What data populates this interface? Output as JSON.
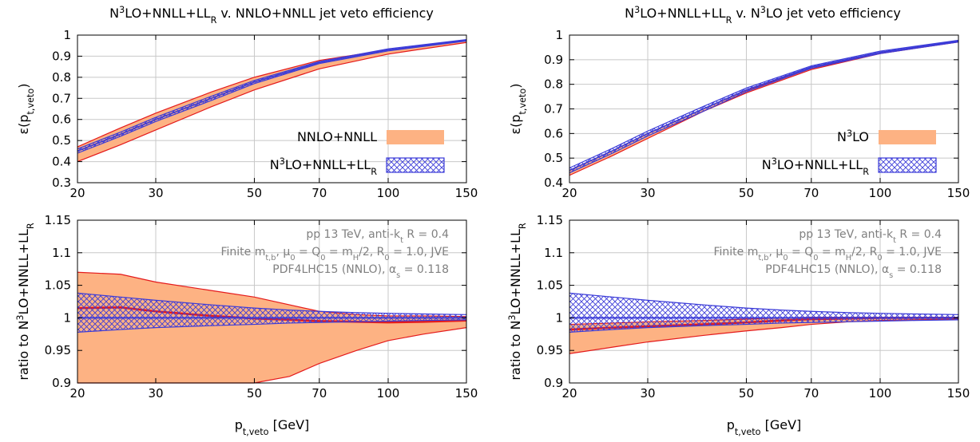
{
  "chart_data": [
    {
      "type": "area",
      "panel": "left-top",
      "title": "N3LO+NNLL+LLR v. NNLO+NNLL jet veto efficiency",
      "ylabel": "ε(pt,veto)",
      "xscale": "log",
      "xlim": [
        20,
        150
      ],
      "ylim": [
        0.3,
        1.0
      ],
      "xticks": [
        "20",
        "30",
        "50",
        "70",
        "100",
        "150"
      ],
      "yticks": [
        "0.3",
        "0.4",
        "0.5",
        "0.6",
        "0.7",
        "0.8",
        "0.9",
        "1"
      ],
      "legend_position": "bottom-right",
      "series": [
        {
          "name": "NNLO+NNLL",
          "style": "filled-band",
          "x": [
            20,
            25,
            30,
            40,
            50,
            70,
            100,
            150
          ],
          "lower": [
            0.4,
            0.48,
            0.55,
            0.66,
            0.74,
            0.84,
            0.91,
            0.965
          ],
          "upper": [
            0.47,
            0.56,
            0.63,
            0.73,
            0.8,
            0.88,
            0.93,
            0.975
          ]
        },
        {
          "name": "N3LO+NNLL+LLR",
          "style": "hatched-band",
          "x": [
            20,
            25,
            30,
            40,
            50,
            70,
            100,
            150
          ],
          "lower": [
            0.44,
            0.52,
            0.59,
            0.69,
            0.77,
            0.865,
            0.925,
            0.972
          ],
          "upper": [
            0.46,
            0.54,
            0.61,
            0.71,
            0.785,
            0.875,
            0.935,
            0.979
          ]
        }
      ]
    },
    {
      "type": "area",
      "panel": "left-bottom",
      "xlabel_main": "p",
      "xlabel_sub": "t,veto",
      "xlabel_tail": " [GeV]",
      "ylabel": "ratio to N3LO+NNLL+LLR",
      "xscale": "log",
      "xlim": [
        20,
        150
      ],
      "ylim": [
        0.9,
        1.15
      ],
      "xticks": [
        "20",
        "30",
        "50",
        "70",
        "100",
        "150"
      ],
      "yticks": [
        "0.9",
        "0.95",
        "1",
        "1.05",
        "1.1",
        "1.15"
      ],
      "series": [
        {
          "name": "NNLO+NNLL",
          "style": "filled-band",
          "x": [
            20,
            25,
            30,
            40,
            50,
            60,
            70,
            85,
            100,
            120,
            150
          ],
          "lower": [
            0.9,
            0.9,
            0.9,
            0.9,
            0.9,
            0.91,
            0.93,
            0.95,
            0.965,
            0.975,
            0.985
          ],
          "upper": [
            1.07,
            1.067,
            1.055,
            1.042,
            1.032,
            1.02,
            1.01,
            1.005,
            1.003,
            1.003,
            1.002
          ],
          "central": [
            1.015,
            1.016,
            1.01,
            1.003,
            0.999,
            0.997,
            0.995,
            0.994,
            0.993,
            0.994,
            0.996
          ]
        },
        {
          "name": "N3LO+NNLL+LLR",
          "style": "hatched-band",
          "x": [
            20,
            25,
            30,
            40,
            50,
            60,
            70,
            85,
            100,
            120,
            150
          ],
          "lower": [
            0.978,
            0.982,
            0.985,
            0.988,
            0.99,
            0.992,
            0.993,
            0.994,
            0.995,
            0.996,
            0.997
          ],
          "upper": [
            1.038,
            1.032,
            1.027,
            1.02,
            1.015,
            1.012,
            1.01,
            1.008,
            1.007,
            1.006,
            1.005
          ],
          "central": [
            1.0,
            1.0,
            1.0,
            1.0,
            1.0,
            1.0,
            1.0,
            1.0,
            1.0,
            1.0,
            1.0
          ]
        }
      ]
    },
    {
      "type": "area",
      "panel": "right-top",
      "title": "N3LO+NNLL+LLR v. N3LO jet veto efficiency",
      "ylabel": "ε(pt,veto)",
      "xscale": "log",
      "xlim": [
        20,
        150
      ],
      "ylim": [
        0.4,
        1.0
      ],
      "xticks": [
        "20",
        "30",
        "50",
        "70",
        "100",
        "150"
      ],
      "yticks": [
        "0.4",
        "0.5",
        "0.6",
        "0.7",
        "0.8",
        "0.9",
        "1"
      ],
      "legend_position": "bottom-right",
      "series": [
        {
          "name": "N3LO",
          "style": "filled-band",
          "x": [
            20,
            25,
            30,
            40,
            50,
            70,
            100,
            150
          ],
          "lower": [
            0.43,
            0.51,
            0.58,
            0.69,
            0.765,
            0.86,
            0.925,
            0.972
          ],
          "upper": [
            0.45,
            0.53,
            0.6,
            0.7,
            0.775,
            0.865,
            0.93,
            0.975
          ]
        },
        {
          "name": "N3LO+NNLL+LLR",
          "style": "hatched-band",
          "x": [
            20,
            25,
            30,
            40,
            50,
            70,
            100,
            150
          ],
          "lower": [
            0.44,
            0.52,
            0.59,
            0.69,
            0.77,
            0.865,
            0.925,
            0.972
          ],
          "upper": [
            0.46,
            0.54,
            0.61,
            0.71,
            0.785,
            0.875,
            0.935,
            0.979
          ]
        }
      ]
    },
    {
      "type": "area",
      "panel": "right-bottom",
      "xlabel_main": "p",
      "xlabel_sub": "t,veto",
      "xlabel_tail": " [GeV]",
      "ylabel": "ratio to N3LO+NNLL+LLR",
      "xscale": "log",
      "xlim": [
        20,
        150
      ],
      "ylim": [
        0.9,
        1.15
      ],
      "xticks": [
        "20",
        "30",
        "50",
        "70",
        "100",
        "150"
      ],
      "yticks": [
        "0.9",
        "0.95",
        "1",
        "1.05",
        "1.1",
        "1.15"
      ],
      "series": [
        {
          "name": "N3LO",
          "style": "filled-band",
          "x": [
            20,
            25,
            30,
            40,
            50,
            60,
            70,
            85,
            100,
            120,
            150
          ],
          "lower": [
            0.945,
            0.955,
            0.963,
            0.973,
            0.98,
            0.985,
            0.99,
            0.994,
            0.996,
            0.997,
            0.998
          ],
          "upper": [
            0.99,
            0.992,
            0.994,
            0.996,
            0.998,
            1.0,
            1.001,
            1.001,
            1.001,
            1.001,
            1.001
          ],
          "central": [
            0.982,
            0.985,
            0.987,
            0.99,
            0.993,
            0.996,
            0.998,
            0.999,
            1.0,
            1.0,
            1.0
          ]
        },
        {
          "name": "N3LO+NNLL+LLR",
          "style": "hatched-band",
          "x": [
            20,
            25,
            30,
            40,
            50,
            60,
            70,
            85,
            100,
            120,
            150
          ],
          "lower": [
            0.978,
            0.982,
            0.985,
            0.988,
            0.99,
            0.992,
            0.993,
            0.994,
            0.995,
            0.996,
            0.997
          ],
          "upper": [
            1.038,
            1.032,
            1.027,
            1.02,
            1.015,
            1.012,
            1.01,
            1.008,
            1.007,
            1.006,
            1.005
          ],
          "central": [
            1.0,
            1.0,
            1.0,
            1.0,
            1.0,
            1.0,
            1.0,
            1.0,
            1.0,
            1.0,
            1.0
          ]
        }
      ]
    }
  ],
  "annotations": {
    "line1": "pp 13 TeV, anti-kt R = 0.4",
    "line2": "Finite mt,b, μ0 = Q0 = mH/2, R0 = 1.0, JVE",
    "line3": "PDF4LHC15 (NNLO), αs = 0.118"
  },
  "colors": {
    "orange_fill": "#fdb283",
    "red_line": "#e41a1c",
    "blue_line": "#3b3bd8",
    "grid": "#c8c8c8"
  }
}
